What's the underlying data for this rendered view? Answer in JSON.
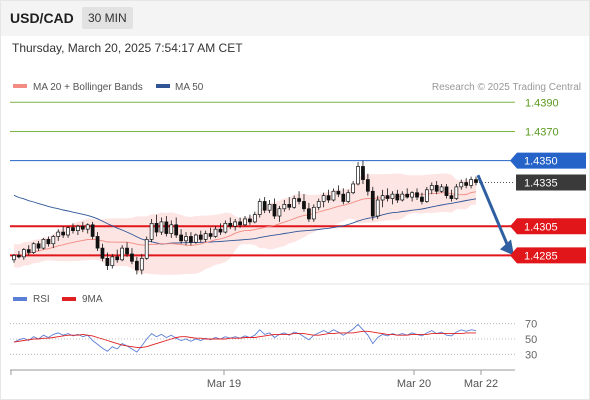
{
  "header": {
    "symbol": "USD/CAD",
    "timeframe": "30 MIN"
  },
  "timestamp": "Thursday, March 20, 2025 7:54:17 AM CET",
  "legend": {
    "ma20": {
      "label": "MA 20 + Bollinger Bands",
      "color": "#f28b82"
    },
    "ma50": {
      "label": "MA 50",
      "color": "#2f5597"
    },
    "credit": "Research © 2025 Trading Central"
  },
  "rsi_legend": {
    "rsi": {
      "label": "RSI",
      "color": "#5b7fd6"
    },
    "ma9": {
      "label": "9MA",
      "color": "#e02020"
    }
  },
  "chart_data": {
    "type": "candlestick",
    "price_axis": {
      "min": 1.4275,
      "max": 1.4395
    },
    "levels": [
      {
        "value": 1.439,
        "label": "1.4390",
        "kind": "resistance",
        "color": "#7cb342"
      },
      {
        "value": 1.437,
        "label": "1.4370",
        "kind": "resistance",
        "color": "#7cb342"
      },
      {
        "value": 1.435,
        "label": "1.4350",
        "kind": "pivot",
        "color": "#2563c9"
      },
      {
        "value": 1.4335,
        "label": "1.4335",
        "kind": "last-price",
        "color": "#3a3a3a"
      },
      {
        "value": 1.4305,
        "label": "1.4305",
        "kind": "support",
        "color": "#e0161a"
      },
      {
        "value": 1.4285,
        "label": "1.4285",
        "kind": "support",
        "color": "#e0161a"
      }
    ],
    "forecast": {
      "from": 1.434,
      "to": 1.4285,
      "direction": "down",
      "color": "#2f5fa0"
    },
    "x_ticks": [
      "Mar 19",
      "Mar 20",
      "Mar 22"
    ],
    "candles": [
      [
        1.4282,
        1.4286,
        1.428,
        1.4285
      ],
      [
        1.4285,
        1.4288,
        1.4283,
        1.4284
      ],
      [
        1.4284,
        1.429,
        1.4282,
        1.4289
      ],
      [
        1.4289,
        1.4292,
        1.4285,
        1.4287
      ],
      [
        1.4287,
        1.4294,
        1.4286,
        1.4293
      ],
      [
        1.4293,
        1.4295,
        1.4288,
        1.429
      ],
      [
        1.429,
        1.4297,
        1.4289,
        1.4296
      ],
      [
        1.4296,
        1.4298,
        1.4291,
        1.4293
      ],
      [
        1.4293,
        1.4299,
        1.429,
        1.4298
      ],
      [
        1.4298,
        1.4303,
        1.4295,
        1.4301
      ],
      [
        1.4301,
        1.4305,
        1.4297,
        1.4299
      ],
      [
        1.4299,
        1.4305,
        1.4297,
        1.4304
      ],
      [
        1.4304,
        1.4307,
        1.43,
        1.4302
      ],
      [
        1.4302,
        1.4306,
        1.4299,
        1.4305
      ],
      [
        1.4305,
        1.4308,
        1.4301,
        1.4303
      ],
      [
        1.4303,
        1.4307,
        1.43,
        1.4306
      ],
      [
        1.4306,
        1.4308,
        1.4296,
        1.4298
      ],
      [
        1.4298,
        1.4301,
        1.4288,
        1.429
      ],
      [
        1.429,
        1.4293,
        1.4281,
        1.4283
      ],
      [
        1.4283,
        1.4287,
        1.4275,
        1.4278
      ],
      [
        1.4278,
        1.4286,
        1.4276,
        1.4284
      ],
      [
        1.4284,
        1.4289,
        1.428,
        1.4282
      ],
      [
        1.4282,
        1.4292,
        1.4281,
        1.429
      ],
      [
        1.429,
        1.4294,
        1.4284,
        1.4286
      ],
      [
        1.4286,
        1.429,
        1.4279,
        1.4281
      ],
      [
        1.4281,
        1.4284,
        1.4272,
        1.4275
      ],
      [
        1.4275,
        1.4286,
        1.4272,
        1.4283
      ],
      [
        1.4283,
        1.4298,
        1.4282,
        1.4296
      ],
      [
        1.4296,
        1.431,
        1.4294,
        1.4307
      ],
      [
        1.4307,
        1.4313,
        1.4298,
        1.4301
      ],
      [
        1.4301,
        1.4311,
        1.4299,
        1.4308
      ],
      [
        1.4308,
        1.4312,
        1.4298,
        1.43
      ],
      [
        1.43,
        1.4309,
        1.4297,
        1.4306
      ],
      [
        1.4306,
        1.4311,
        1.4297,
        1.4299
      ],
      [
        1.4299,
        1.4303,
        1.4293,
        1.4295
      ],
      [
        1.4295,
        1.4301,
        1.4292,
        1.4298
      ],
      [
        1.4298,
        1.4301,
        1.4292,
        1.4294
      ],
      [
        1.4294,
        1.43,
        1.4293,
        1.4299
      ],
      [
        1.4299,
        1.4302,
        1.4294,
        1.4296
      ],
      [
        1.4296,
        1.4302,
        1.4294,
        1.43
      ],
      [
        1.43,
        1.4304,
        1.4296,
        1.4298
      ],
      [
        1.4298,
        1.4305,
        1.4297,
        1.4303
      ],
      [
        1.4303,
        1.4307,
        1.4299,
        1.4301
      ],
      [
        1.4301,
        1.4309,
        1.43,
        1.4307
      ],
      [
        1.4307,
        1.4311,
        1.4303,
        1.4305
      ],
      [
        1.4305,
        1.431,
        1.4302,
        1.4308
      ],
      [
        1.4308,
        1.4311,
        1.4304,
        1.4306
      ],
      [
        1.4306,
        1.4312,
        1.4305,
        1.431
      ],
      [
        1.431,
        1.4313,
        1.4306,
        1.4308
      ],
      [
        1.4308,
        1.4315,
        1.4307,
        1.4313
      ],
      [
        1.4313,
        1.4324,
        1.4311,
        1.4322
      ],
      [
        1.4322,
        1.4325,
        1.4314,
        1.4316
      ],
      [
        1.4316,
        1.4323,
        1.4314,
        1.432
      ],
      [
        1.432,
        1.4324,
        1.431,
        1.4312
      ],
      [
        1.4312,
        1.4319,
        1.4308,
        1.4317
      ],
      [
        1.4317,
        1.4323,
        1.4315,
        1.432
      ],
      [
        1.432,
        1.4325,
        1.4316,
        1.4318
      ],
      [
        1.4318,
        1.4326,
        1.4317,
        1.4324
      ],
      [
        1.4324,
        1.4329,
        1.432,
        1.4322
      ],
      [
        1.4322,
        1.4327,
        1.4315,
        1.4317
      ],
      [
        1.4317,
        1.4321,
        1.4308,
        1.431
      ],
      [
        1.431,
        1.432,
        1.4308,
        1.4318
      ],
      [
        1.4318,
        1.4324,
        1.4316,
        1.4322
      ],
      [
        1.4322,
        1.4328,
        1.4318,
        1.4326
      ],
      [
        1.4326,
        1.433,
        1.4321,
        1.4323
      ],
      [
        1.4323,
        1.4331,
        1.4322,
        1.4329
      ],
      [
        1.4329,
        1.4333,
        1.4325,
        1.4327
      ],
      [
        1.4327,
        1.4331,
        1.432,
        1.4322
      ],
      [
        1.4322,
        1.433,
        1.4321,
        1.4328
      ],
      [
        1.4328,
        1.4336,
        1.4327,
        1.4334
      ],
      [
        1.4334,
        1.4349,
        1.4333,
        1.4346
      ],
      [
        1.4346,
        1.435,
        1.4334,
        1.4337
      ],
      [
        1.4337,
        1.4341,
        1.4326,
        1.4329
      ],
      [
        1.4329,
        1.4332,
        1.4309,
        1.4312
      ],
      [
        1.4312,
        1.4326,
        1.431,
        1.4323
      ],
      [
        1.4323,
        1.433,
        1.4318,
        1.4326
      ],
      [
        1.4326,
        1.4331,
        1.4322,
        1.4324
      ],
      [
        1.4324,
        1.4329,
        1.432,
        1.4327
      ],
      [
        1.4327,
        1.433,
        1.4321,
        1.4323
      ],
      [
        1.4323,
        1.4329,
        1.4322,
        1.4327
      ],
      [
        1.4327,
        1.4331,
        1.4324,
        1.4325
      ],
      [
        1.4325,
        1.4329,
        1.4322,
        1.4328
      ],
      [
        1.4328,
        1.4331,
        1.4323,
        1.4325
      ],
      [
        1.4325,
        1.4328,
        1.432,
        1.4322
      ],
      [
        1.4322,
        1.4332,
        1.4321,
        1.433
      ],
      [
        1.433,
        1.4335,
        1.4327,
        1.4333
      ],
      [
        1.4333,
        1.4336,
        1.4327,
        1.4329
      ],
      [
        1.4329,
        1.4334,
        1.4328,
        1.4332
      ],
      [
        1.4332,
        1.4334,
        1.4324,
        1.4326
      ],
      [
        1.4326,
        1.433,
        1.4322,
        1.4324
      ],
      [
        1.4324,
        1.4334,
        1.4323,
        1.4332
      ],
      [
        1.4332,
        1.4337,
        1.433,
        1.4335
      ],
      [
        1.4335,
        1.4338,
        1.4331,
        1.4333
      ],
      [
        1.4333,
        1.4339,
        1.4331,
        1.4337
      ],
      [
        1.4337,
        1.4339,
        1.4333,
        1.4335
      ]
    ],
    "rsi_panel": {
      "levels": [
        70,
        50,
        30
      ],
      "rsi": [
        46,
        49,
        51,
        48,
        53,
        50,
        55,
        52,
        56,
        58,
        55,
        57,
        54,
        56,
        53,
        55,
        48,
        43,
        38,
        34,
        40,
        37,
        44,
        41,
        37,
        33,
        41,
        50,
        57,
        53,
        56,
        52,
        55,
        51,
        48,
        50,
        47,
        50,
        48,
        51,
        49,
        52,
        50,
        53,
        51,
        53,
        51,
        54,
        52,
        55,
        62,
        56,
        58,
        52,
        56,
        58,
        55,
        59,
        57,
        53,
        49,
        55,
        58,
        61,
        58,
        62,
        59,
        55,
        59,
        63,
        69,
        62,
        55,
        44,
        52,
        56,
        54,
        57,
        55,
        57,
        55,
        58,
        56,
        54,
        58,
        61,
        57,
        59,
        55,
        54,
        59,
        62,
        60,
        62,
        61
      ],
      "ma9": [
        46,
        47,
        48,
        49,
        50,
        50,
        51,
        51,
        52,
        53,
        54,
        55,
        55,
        55,
        56,
        55,
        54,
        52,
        50,
        48,
        46,
        44,
        42,
        41,
        40,
        39,
        39,
        40,
        42,
        44,
        46,
        48,
        50,
        52,
        53,
        53,
        52,
        51,
        51,
        50,
        50,
        50,
        50,
        50,
        51,
        51,
        51,
        52,
        52,
        52,
        53,
        54,
        55,
        56,
        56,
        56,
        56,
        57,
        57,
        57,
        56,
        55,
        55,
        56,
        57,
        57,
        58,
        58,
        58,
        58,
        59,
        60,
        60,
        59,
        58,
        57,
        56,
        56,
        55,
        55,
        55,
        56,
        56,
        56,
        56,
        57,
        57,
        57,
        57,
        57,
        57,
        57,
        58,
        58,
        58
      ]
    }
  }
}
